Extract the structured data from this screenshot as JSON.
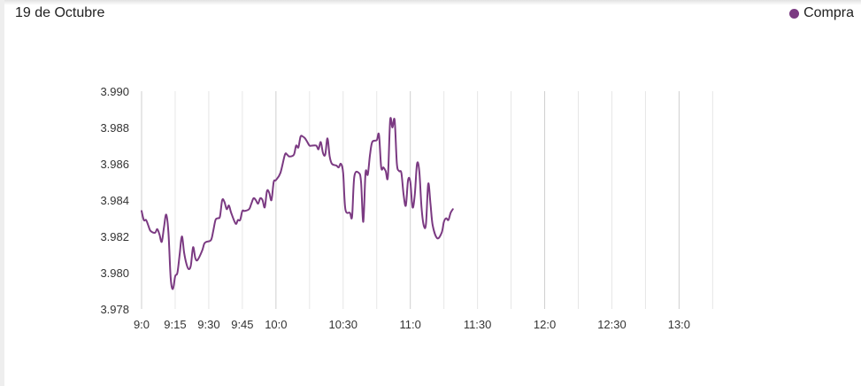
{
  "header": {
    "title": "19 de Octubre"
  },
  "legend": {
    "label": "Compra",
    "color": "#7b3a82"
  },
  "chart_data": {
    "type": "line",
    "title": "19 de Octubre",
    "xlabel": "",
    "ylabel": "",
    "ylim": [
      3.978,
      3.99
    ],
    "yticks": [
      "3.990",
      "3.988",
      "3.986",
      "3.984",
      "3.982",
      "3.980",
      "3.978"
    ],
    "x_ticks": [
      {
        "t": "9:00",
        "label": "9:0"
      },
      {
        "t": "9:15",
        "label": "9:15"
      },
      {
        "t": "9:30",
        "label": "9:30"
      },
      {
        "t": "9:45",
        "label": "9:45"
      },
      {
        "t": "10:00",
        "label": "10:0"
      },
      {
        "t": "10:30",
        "label": "10:30"
      },
      {
        "t": "11:00",
        "label": "11:0"
      },
      {
        "t": "11:30",
        "label": "11:30"
      },
      {
        "t": "12:00",
        "label": "12:0"
      },
      {
        "t": "12:30",
        "label": "12:30"
      },
      {
        "t": "13:00",
        "label": "13:0"
      }
    ],
    "grid_major": [
      "9:00",
      "10:00",
      "11:00",
      "12:00",
      "13:00"
    ],
    "grid_minor": [
      "9:15",
      "9:30",
      "9:45",
      "10:15",
      "10:30",
      "10:45",
      "11:15",
      "11:30",
      "11:45",
      "12:15",
      "12:30",
      "12:45",
      "13:15"
    ],
    "series": [
      {
        "name": "Compra",
        "color": "#7b3a82",
        "points": [
          [
            "9:00",
            3.9834
          ],
          [
            "9:01",
            3.9829
          ],
          [
            "9:02",
            3.9829
          ],
          [
            "9:03",
            3.9826
          ],
          [
            "9:04",
            3.9823
          ],
          [
            "9:06",
            3.9822
          ],
          [
            "9:07",
            3.9824
          ],
          [
            "9:08",
            3.9821
          ],
          [
            "9:09",
            3.9817
          ],
          [
            "9:10",
            3.9825
          ],
          [
            "9:11",
            3.9832
          ],
          [
            "9:12",
            3.9822
          ],
          [
            "9:13",
            3.9797
          ],
          [
            "9:14",
            3.9791
          ],
          [
            "9:15",
            3.9798
          ],
          [
            "9:16",
            3.98
          ],
          [
            "9:17",
            3.981
          ],
          [
            "9:18",
            3.982
          ],
          [
            "9:19",
            3.9811
          ],
          [
            "9:20",
            3.9805
          ],
          [
            "9:21",
            3.9802
          ],
          [
            "9:22",
            3.9804
          ],
          [
            "9:23",
            3.9814
          ],
          [
            "9:24",
            3.9808
          ],
          [
            "9:25",
            3.9807
          ],
          [
            "9:27",
            3.9812
          ],
          [
            "9:28",
            3.9816
          ],
          [
            "9:29",
            3.9817
          ],
          [
            "9:31",
            3.9818
          ],
          [
            "9:32",
            3.9823
          ],
          [
            "9:33",
            3.9829
          ],
          [
            "9:34",
            3.983
          ],
          [
            "9:35",
            3.9831
          ],
          [
            "9:36",
            3.984
          ],
          [
            "9:37",
            3.9839
          ],
          [
            "9:38",
            3.9835
          ],
          [
            "9:39",
            3.9837
          ],
          [
            "9:40",
            3.9833
          ],
          [
            "9:42",
            3.9827
          ],
          [
            "9:43",
            3.9829
          ],
          [
            "9:44",
            3.9829
          ],
          [
            "9:45",
            3.9834
          ],
          [
            "9:46",
            3.9834
          ],
          [
            "9:48",
            3.9835
          ],
          [
            "9:49",
            3.9838
          ],
          [
            "9:50",
            3.9841
          ],
          [
            "9:51",
            3.984
          ],
          [
            "9:52",
            3.9838
          ],
          [
            "9:53",
            3.9841
          ],
          [
            "9:54",
            3.984
          ],
          [
            "9:55",
            3.9836
          ],
          [
            "9:56",
            3.9845
          ],
          [
            "9:57",
            3.9844
          ],
          [
            "9:58",
            3.984
          ],
          [
            "9:59",
            3.985
          ],
          [
            "10:00",
            3.9851
          ],
          [
            "10:02",
            3.9855
          ],
          [
            "10:04",
            3.9865
          ],
          [
            "10:05",
            3.9865
          ],
          [
            "10:06",
            3.9864
          ],
          [
            "10:08",
            3.9865
          ],
          [
            "10:09",
            3.987
          ],
          [
            "10:10",
            3.9869
          ],
          [
            "10:11",
            3.9875
          ],
          [
            "10:12",
            3.9875
          ],
          [
            "10:13",
            3.9874
          ],
          [
            "10:14",
            3.9872
          ],
          [
            "10:15",
            3.987
          ],
          [
            "10:16",
            3.987
          ],
          [
            "10:18",
            3.987
          ],
          [
            "10:19",
            3.9868
          ],
          [
            "10:20",
            3.9872
          ],
          [
            "10:21",
            3.9866
          ],
          [
            "10:22",
            3.9865
          ],
          [
            "10:23",
            3.9874
          ],
          [
            "10:24",
            3.9864
          ],
          [
            "10:25",
            3.986
          ],
          [
            "10:27",
            3.9859
          ],
          [
            "10:28",
            3.9858
          ],
          [
            "10:29",
            3.986
          ],
          [
            "10:30",
            3.9855
          ],
          [
            "10:31",
            3.9835
          ],
          [
            "10:33",
            3.9833
          ],
          [
            "10:34",
            3.9831
          ],
          [
            "10:35",
            3.9853
          ],
          [
            "10:37",
            3.9855
          ],
          [
            "10:38",
            3.985
          ],
          [
            "10:39",
            3.9828
          ],
          [
            "10:40",
            3.9855
          ],
          [
            "10:41",
            3.9854
          ],
          [
            "10:42",
            3.9865
          ],
          [
            "10:43",
            3.9872
          ],
          [
            "10:45",
            3.9873
          ],
          [
            "10:46",
            3.9876
          ],
          [
            "10:47",
            3.9858
          ],
          [
            "10:48",
            3.9858
          ],
          [
            "10:49",
            3.9856
          ],
          [
            "10:50",
            3.9853
          ],
          [
            "10:51",
            3.9884
          ],
          [
            "10:52",
            3.988
          ],
          [
            "10:53",
            3.9884
          ],
          [
            "10:54",
            3.986
          ],
          [
            "10:55",
            3.9856
          ],
          [
            "10:56",
            3.9855
          ],
          [
            "10:57",
            3.9843
          ],
          [
            "10:58",
            3.9837
          ],
          [
            "10:59",
            3.9851
          ],
          [
            "11:00",
            3.985
          ],
          [
            "11:01",
            3.9836
          ],
          [
            "11:02",
            3.9843
          ],
          [
            "11:03",
            3.986
          ],
          [
            "11:04",
            3.9856
          ],
          [
            "11:05",
            3.9836
          ],
          [
            "11:06",
            3.9826
          ],
          [
            "11:07",
            3.9827
          ],
          [
            "11:08",
            3.9849
          ],
          [
            "11:09",
            3.9838
          ],
          [
            "11:10",
            3.9826
          ],
          [
            "11:12",
            3.9819
          ],
          [
            "11:14",
            3.9822
          ],
          [
            "11:15",
            3.9828
          ],
          [
            "11:16",
            3.983
          ],
          [
            "11:17",
            3.9829
          ],
          [
            "11:18",
            3.9833
          ],
          [
            "11:19",
            3.9835
          ]
        ]
      }
    ]
  }
}
